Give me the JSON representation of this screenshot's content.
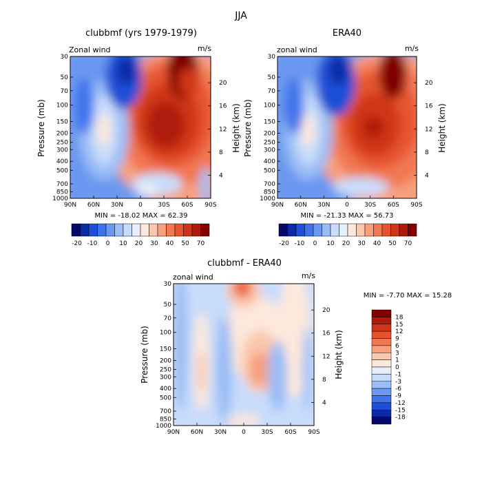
{
  "figure_title": "JJA",
  "chart_data": [
    {
      "type": "heatmap",
      "title": "clubbmf (yrs 1979-1979)",
      "corner_left": "Zonal wind",
      "corner_right": "m/s",
      "ylabel": "Pressure (mb)",
      "ylabel_right": "Height (km)",
      "x_ticks": [
        "90N",
        "60N",
        "30N",
        "0",
        "30S",
        "60S",
        "90S"
      ],
      "y_ticks": [
        "30",
        "50",
        "70",
        "100",
        "150",
        "200",
        "250",
        "300",
        "400",
        "500",
        "700",
        "850",
        "1000"
      ],
      "y_ticks_right": [
        "20",
        "16",
        "12",
        "8",
        "4"
      ],
      "stats": "MIN = -18.02   MAX = 62.39",
      "colorbar_labels": [
        "-20",
        "-10",
        "0",
        "10",
        "20",
        "30",
        "40",
        "50",
        "70"
      ],
      "colorbar_levels": [
        -25,
        -20,
        -15,
        -10,
        -5,
        0,
        5,
        10,
        15,
        20,
        25,
        30,
        35,
        40,
        50,
        60,
        70
      ],
      "min": -18.02,
      "max": 62.39
    },
    {
      "type": "heatmap",
      "title": "ERA40",
      "corner_left": "zonal wind",
      "corner_right": "m/s",
      "ylabel": "Pressure (mb)",
      "ylabel_right": "Height (km)",
      "x_ticks": [
        "90N",
        "60N",
        "30N",
        "0",
        "30S",
        "60S",
        "90S"
      ],
      "y_ticks": [
        "30",
        "50",
        "70",
        "100",
        "150",
        "200",
        "250",
        "300",
        "400",
        "500",
        "700",
        "850",
        "1000"
      ],
      "y_ticks_right": [
        "20",
        "16",
        "12",
        "8",
        "4"
      ],
      "stats": "MIN = -21.33   MAX = 56.73",
      "colorbar_labels": [
        "-20",
        "-10",
        "0",
        "10",
        "20",
        "30",
        "40",
        "50",
        "70"
      ],
      "colorbar_levels": [
        -25,
        -20,
        -15,
        -10,
        -5,
        0,
        5,
        10,
        15,
        20,
        25,
        30,
        35,
        40,
        50,
        60,
        70
      ],
      "min": -21.33,
      "max": 56.73
    },
    {
      "type": "heatmap",
      "title": "clubbmf - ERA40",
      "corner_left": "zonal wind",
      "corner_right": "m/s",
      "ylabel": "Pressure (mb)",
      "ylabel_right": "Height (km)",
      "x_ticks": [
        "90N",
        "60N",
        "30N",
        "0",
        "30S",
        "60S",
        "90S"
      ],
      "y_ticks": [
        "30",
        "50",
        "70",
        "100",
        "150",
        "200",
        "250",
        "300",
        "400",
        "500",
        "700",
        "850",
        "1000"
      ],
      "y_ticks_right": [
        "20",
        "16",
        "12",
        "8",
        "4"
      ],
      "stats": "MIN =   -7.70   MAX =   15.28",
      "colorbar_labels": [
        "18",
        "15",
        "12",
        "9",
        "6",
        "3",
        "1",
        "0",
        "-1",
        "-3",
        "-6",
        "-9",
        "-12",
        "-15",
        "-18"
      ],
      "min": -7.7,
      "max": 15.28
    }
  ],
  "colors": {
    "palette": [
      "#08086b",
      "#0b2aa6",
      "#1f4fd6",
      "#3f73eb",
      "#6b98f0",
      "#9abdf5",
      "#c8dcfb",
      "#e6f0fd",
      "#fde8dc",
      "#fbc7ad",
      "#f89f7d",
      "#f27852",
      "#e5542e",
      "#cf3417",
      "#ad1a0a",
      "#800000"
    ]
  }
}
